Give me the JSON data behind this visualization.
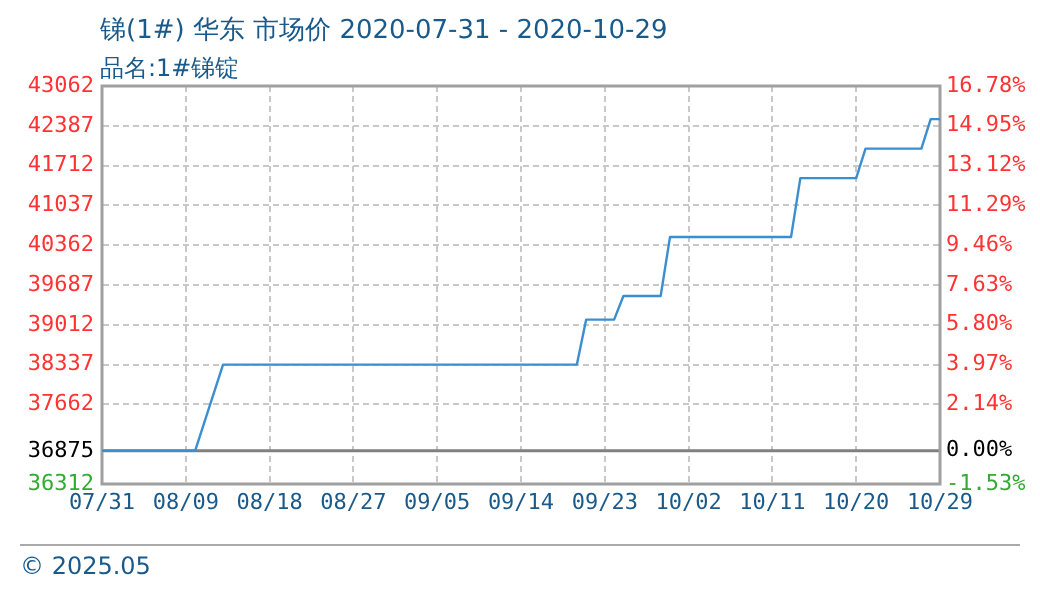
{
  "chart_data": {
    "type": "line",
    "title": "锑(1#) 华东 市场价 2020-07-31 - 2020-10-29",
    "subtitle": "品名:1#锑锭",
    "annotations": [
      "© 2025.05"
    ],
    "x": [
      "2020-07-31",
      "2020-08-10",
      "2020-08-13",
      "2020-09-20",
      "2020-09-21",
      "2020-09-24",
      "2020-09-25",
      "2020-09-29",
      "2020-09-30",
      "2020-10-13",
      "2020-10-14",
      "2020-10-20",
      "2020-10-21",
      "2020-10-27",
      "2020-10-28",
      "2020-10-29"
    ],
    "series": [
      {
        "color": "#3b8fd0",
        "values": [
          36875,
          36875,
          38337,
          38337,
          39100,
          39100,
          39500,
          39500,
          40500,
          40500,
          41500,
          41500,
          42000,
          42000,
          42500,
          42500
        ]
      }
    ],
    "xlim": [
      "2020-07-31",
      "2020-10-29"
    ],
    "xticks": [
      {
        "value": "2020-07-31",
        "label": "07/31"
      },
      {
        "value": "2020-08-09",
        "label": "08/09"
      },
      {
        "value": "2020-08-18",
        "label": "08/18"
      },
      {
        "value": "2020-08-27",
        "label": "08/27"
      },
      {
        "value": "2020-09-05",
        "label": "09/05"
      },
      {
        "value": "2020-09-14",
        "label": "09/14"
      },
      {
        "value": "2020-09-23",
        "label": "09/23"
      },
      {
        "value": "2020-10-02",
        "label": "10/02"
      },
      {
        "value": "2020-10-11",
        "label": "10/11"
      },
      {
        "value": "2020-10-20",
        "label": "10/20"
      },
      {
        "value": "2020-10-29",
        "label": "10/29"
      }
    ],
    "ylim": [
      36312,
      43062
    ],
    "yticks": [
      36312,
      36875,
      37662,
      38337,
      39012,
      39687,
      40362,
      41037,
      41712,
      42387,
      43062
    ],
    "y2lim": [
      -1.53,
      16.78
    ],
    "y2ticks": [
      {
        "value": -1.53,
        "label": "-1.53%"
      },
      {
        "value": 0,
        "label": "0.00%"
      },
      {
        "value": 2.14,
        "label": "2.14%"
      },
      {
        "value": 3.97,
        "label": "3.97%"
      },
      {
        "value": 5.8,
        "label": "5.80%"
      },
      {
        "value": 7.63,
        "label": "7.63%"
      },
      {
        "value": 9.46,
        "label": "9.46%"
      },
      {
        "value": 11.29,
        "label": "11.29%"
      },
      {
        "value": 13.12,
        "label": "13.12%"
      },
      {
        "value": 14.95,
        "label": "14.95%"
      },
      {
        "value": 16.78,
        "label": "16.78%"
      }
    ],
    "ref_lines": [
      {
        "axis": "y",
        "value": 36875,
        "color": "#808080"
      }
    ],
    "grid": true,
    "legend": false,
    "marker": "none",
    "line_style": "solid"
  }
}
